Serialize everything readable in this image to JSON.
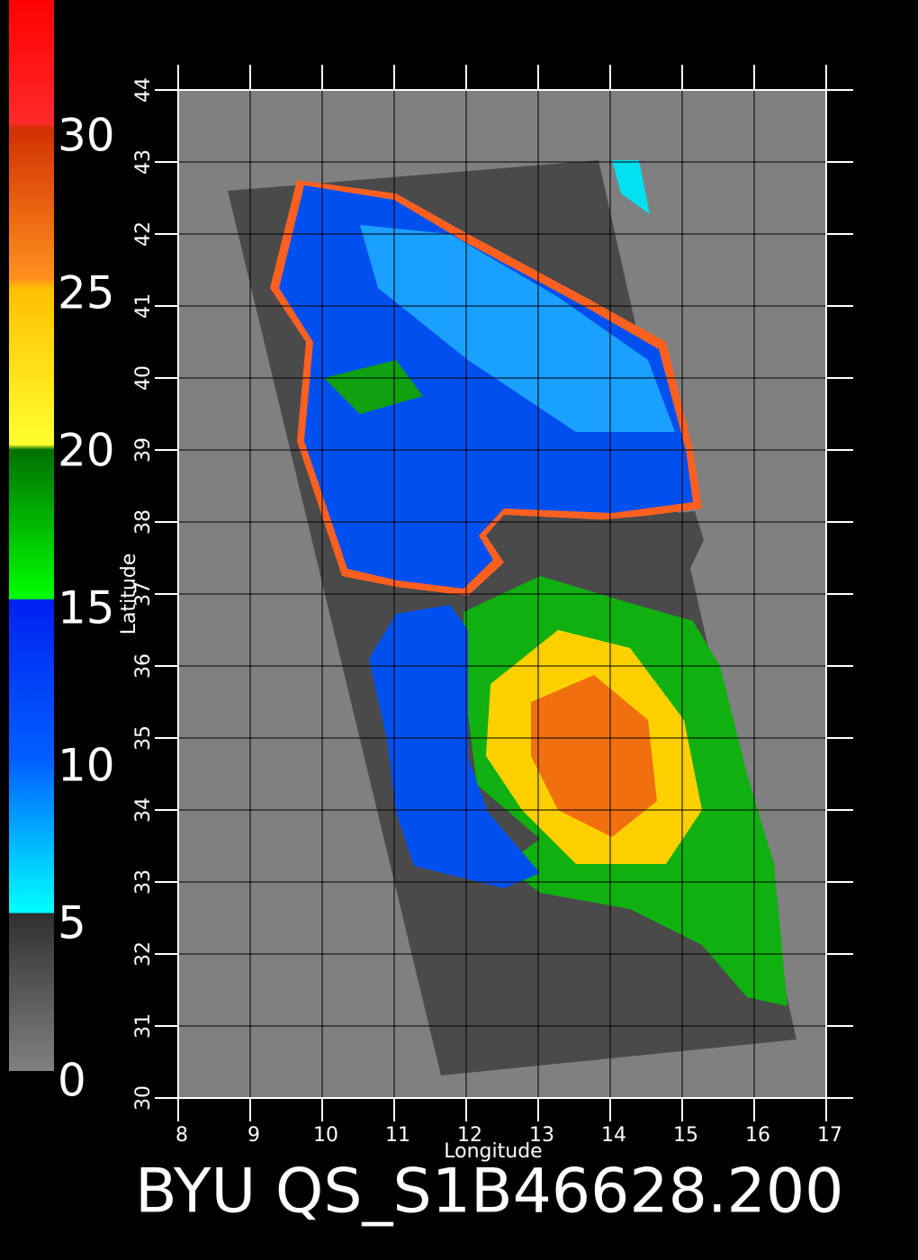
{
  "colorbar": {
    "lim": [
      0,
      34
    ],
    "ticks": [
      0,
      5,
      10,
      15,
      20,
      25,
      30
    ]
  },
  "map": {
    "xlabel": "Longitude",
    "ylabel": "Latitude",
    "xlim": [
      8,
      17
    ],
    "ylim": [
      30,
      44
    ],
    "xticks": [
      8,
      9,
      10,
      11,
      12,
      13,
      14,
      15,
      16,
      17
    ],
    "yticks": [
      30,
      31,
      32,
      33,
      34,
      35,
      36,
      37,
      38,
      39,
      40,
      41,
      42,
      43,
      44
    ]
  },
  "footer": "BYU QS_S1B46628.200"
}
